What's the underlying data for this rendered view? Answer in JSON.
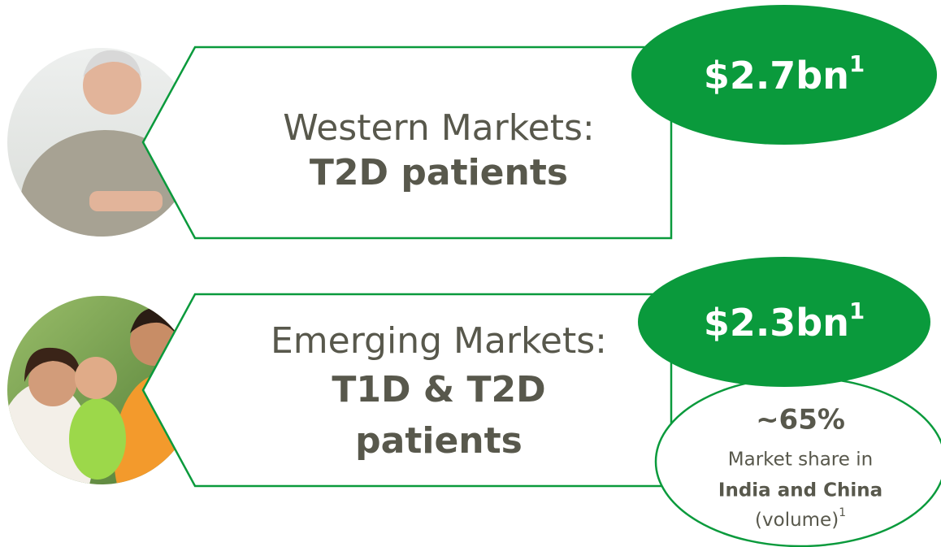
{
  "rows": [
    {
      "title": "Western Markets:",
      "subtitle": [
        "T2D patients"
      ],
      "value": "$2.7bn",
      "footnote": "1"
    },
    {
      "title": "Emerging Markets:",
      "subtitle": [
        "T1D & T2D",
        "patients"
      ],
      "value": "$2.3bn",
      "footnote": "1"
    }
  ],
  "callout": {
    "value": "~65%",
    "line1": "Market share in",
    "line2": "India and China",
    "line3": "(volume)",
    "footnote": "1"
  }
}
